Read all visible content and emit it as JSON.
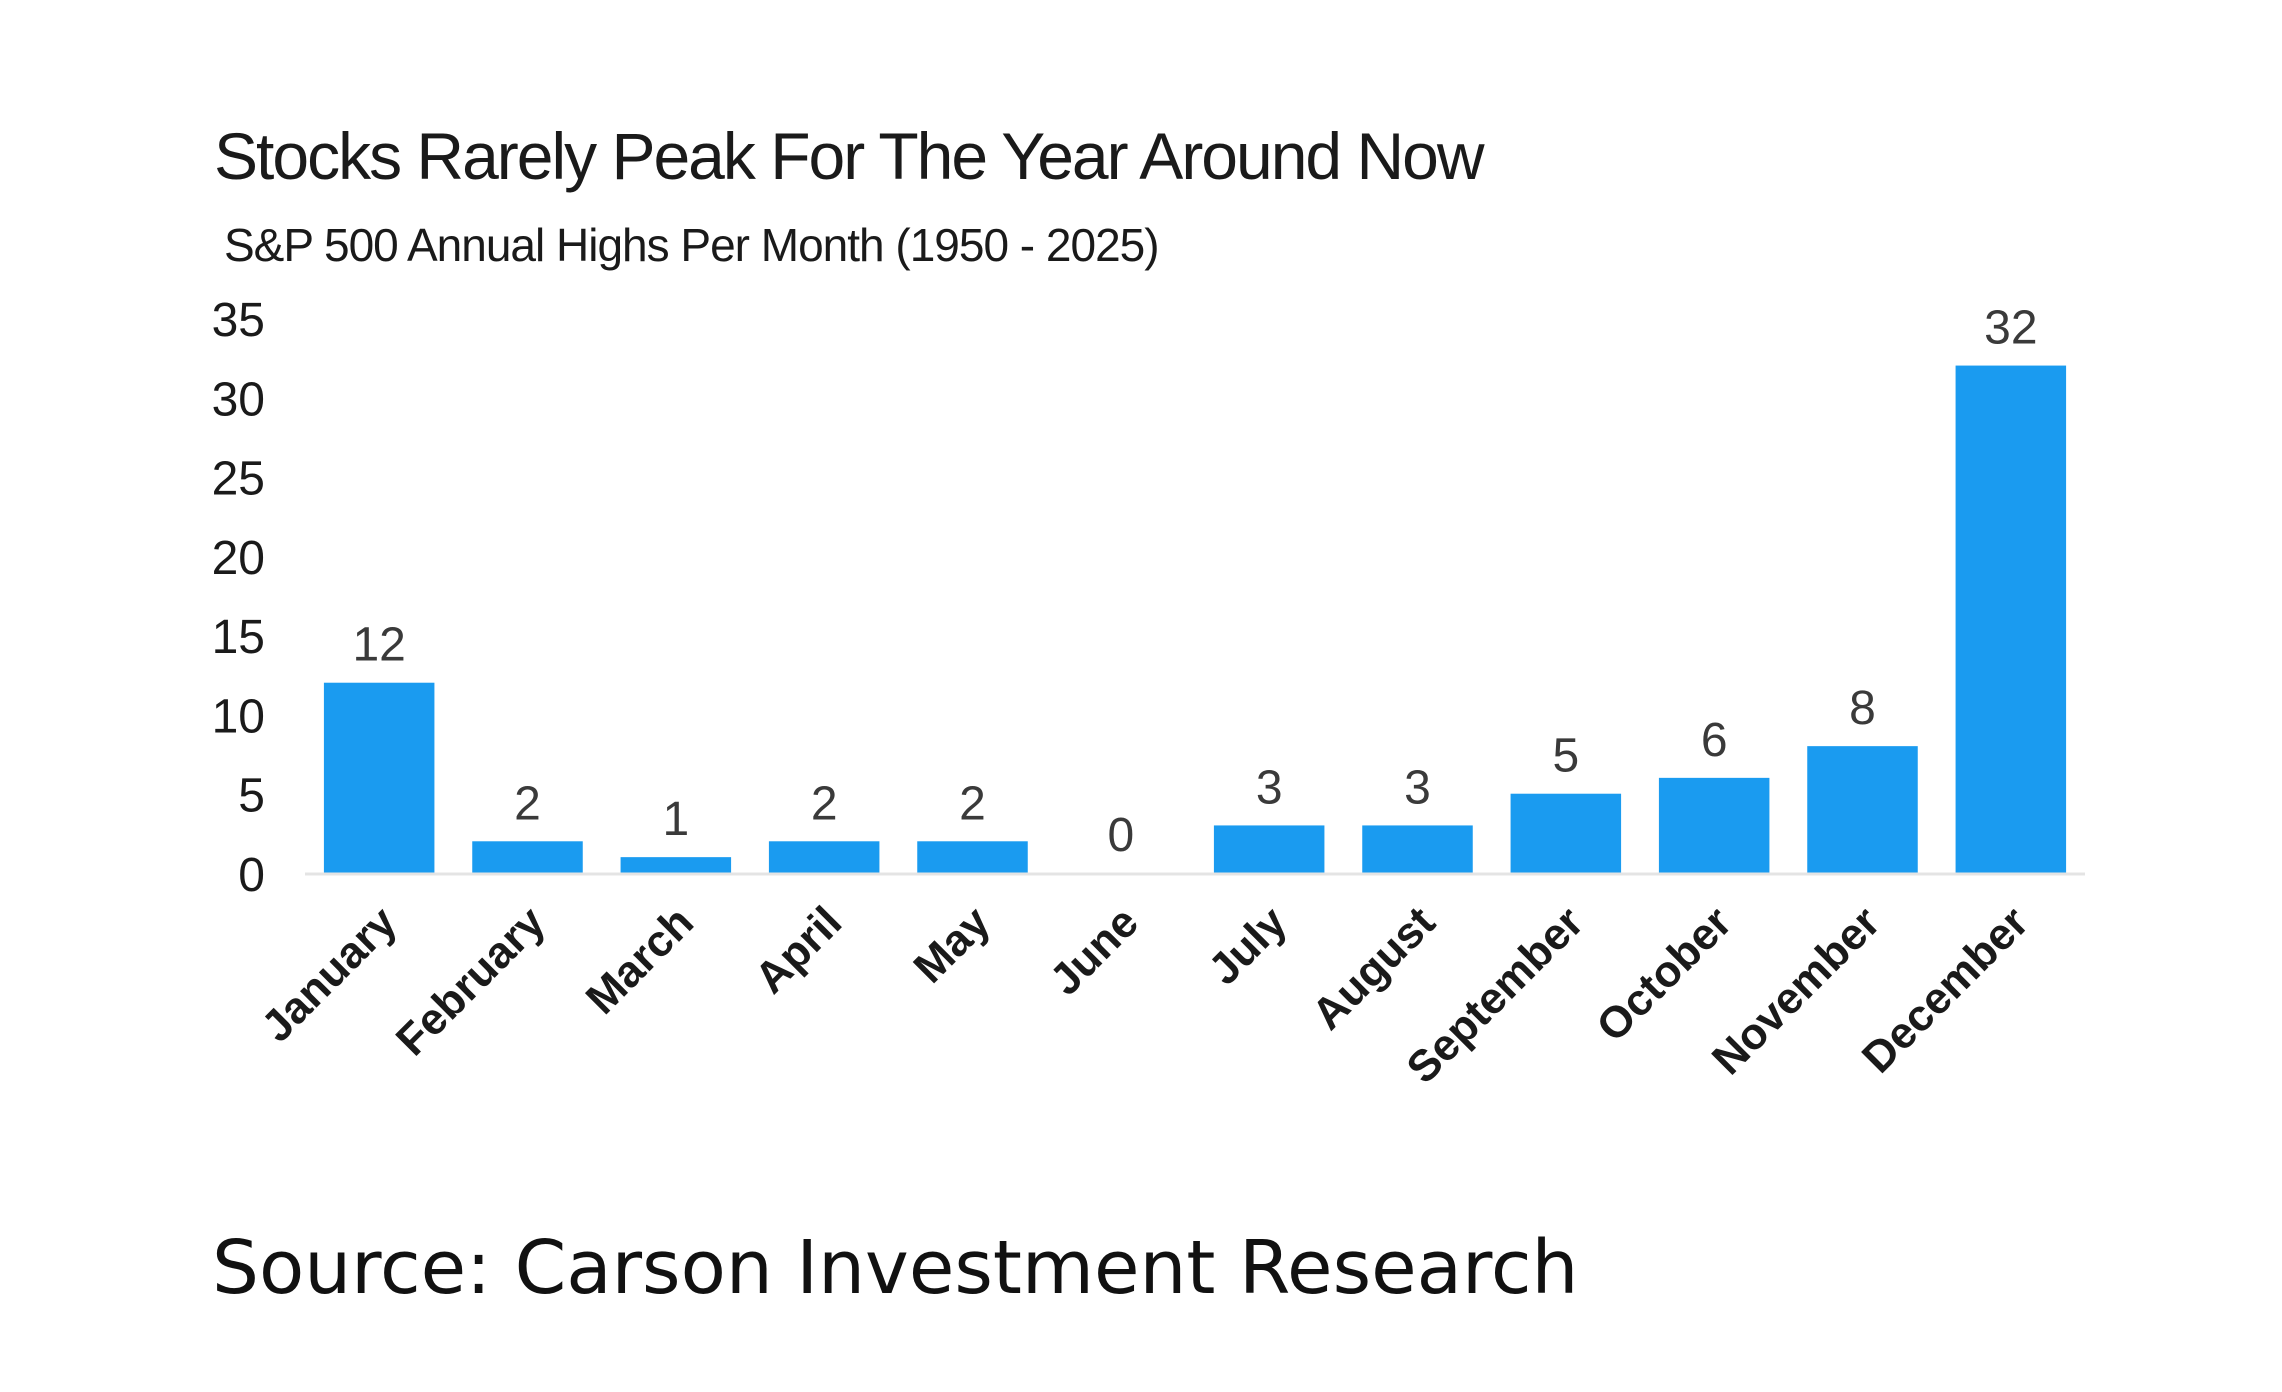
{
  "chart_data": {
    "type": "bar",
    "title": "Stocks Rarely Peak For The Year Around Now",
    "subtitle": "S&P 500 Annual Highs Per Month (1950 - 2025)",
    "categories": [
      "January",
      "February",
      "March",
      "April",
      "May",
      "June",
      "July",
      "August",
      "September",
      "October",
      "November",
      "December"
    ],
    "values": [
      12,
      2,
      1,
      2,
      2,
      0,
      3,
      3,
      5,
      6,
      8,
      32
    ],
    "ylim": [
      0,
      35
    ],
    "yticks": [
      0,
      5,
      10,
      15,
      20,
      25,
      30,
      35
    ],
    "xlabel": "",
    "ylabel": "",
    "data_labels": true,
    "grid": false,
    "bar_color": "#1a9bf0"
  },
  "source": "Source: Carson Investment Research"
}
